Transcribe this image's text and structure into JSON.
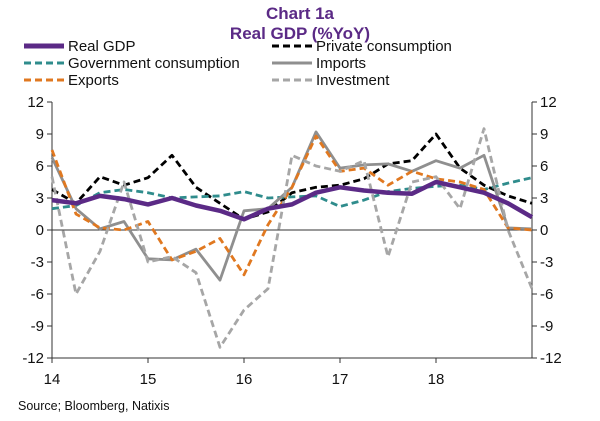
{
  "chart_data": {
    "type": "line",
    "title": "Chart 1a",
    "subtitle": "Real GDP (%YoY)",
    "source": "Source; Bloomberg, Natixis",
    "x": [
      2014.0,
      2014.25,
      2014.5,
      2014.75,
      2015.0,
      2015.25,
      2015.5,
      2015.75,
      2016.0,
      2016.25,
      2016.5,
      2016.75,
      2017.0,
      2017.25,
      2017.5,
      2017.75,
      2018.0,
      2018.25,
      2018.5,
      2018.75,
      2019.0
    ],
    "x_tick_labels": [
      "14",
      "15",
      "16",
      "17",
      "18"
    ],
    "x_tick_values": [
      2014,
      2015,
      2016,
      2017,
      2018
    ],
    "xlim": [
      2014.0,
      2019.0
    ],
    "ylim": [
      -12,
      12
    ],
    "y_ticks": [
      12,
      9,
      6,
      3,
      0,
      -3,
      -6,
      -9,
      -12
    ],
    "y_tick_labels": [
      "12",
      "9",
      "6",
      "3",
      "0",
      "-3",
      "-6",
      "-9",
      "-12"
    ],
    "grid": false,
    "legend_position": "top",
    "series": [
      {
        "name": "Real GDP",
        "color": "#5b2a86",
        "style": "solid",
        "width": 4.5,
        "values": [
          2.8,
          2.5,
          3.2,
          2.9,
          2.4,
          3.0,
          2.3,
          1.8,
          1.0,
          2.0,
          2.4,
          3.5,
          4.0,
          3.7,
          3.5,
          3.4,
          4.5,
          4.0,
          3.5,
          2.5,
          1.2
        ]
      },
      {
        "name": "Private consumption",
        "color": "#000000",
        "style": "dash",
        "width": 2.8,
        "values": [
          3.8,
          2.5,
          5.0,
          4.2,
          4.9,
          7.0,
          4.0,
          2.5,
          1.0,
          1.7,
          3.5,
          4.0,
          4.2,
          4.8,
          6.2,
          6.5,
          9.0,
          5.8,
          4.2,
          3.2,
          2.5
        ]
      },
      {
        "name": "Government consumption",
        "color": "#2f8c8c",
        "style": "dash",
        "width": 2.8,
        "values": [
          2.0,
          2.3,
          3.5,
          3.8,
          3.5,
          3.0,
          3.1,
          3.2,
          3.6,
          3.0,
          3.1,
          3.2,
          2.2,
          2.8,
          3.6,
          3.9,
          4.1,
          4.2,
          3.8,
          4.4,
          4.9
        ]
      },
      {
        "name": "Imports",
        "color": "#8f8f8f",
        "style": "solid",
        "width": 2.8,
        "values": [
          6.8,
          2.0,
          0.1,
          0.8,
          -2.7,
          -2.8,
          -1.8,
          -4.7,
          1.8,
          2.0,
          4.0,
          9.2,
          5.8,
          6.1,
          6.2,
          5.5,
          6.5,
          5.8,
          7.0,
          0.2,
          0.1
        ]
      },
      {
        "name": "Exports",
        "color": "#e07820",
        "style": "dash",
        "width": 2.8,
        "values": [
          7.5,
          1.5,
          0.2,
          0.0,
          0.8,
          -2.8,
          -2.0,
          -0.8,
          -4.2,
          0.5,
          4.0,
          8.8,
          5.5,
          5.8,
          4.2,
          5.5,
          4.8,
          4.5,
          3.8,
          0.2,
          0.0
        ]
      },
      {
        "name": "Investment",
        "color": "#a6a6a6",
        "style": "dash",
        "width": 2.8,
        "values": [
          5.0,
          -6.0,
          -2.0,
          4.5,
          -3.0,
          -2.5,
          -4.0,
          -11.0,
          -7.5,
          -5.5,
          7.0,
          6.0,
          5.5,
          6.5,
          -2.5,
          4.5,
          5.0,
          2.0,
          9.5,
          0.0,
          -5.5
        ]
      }
    ]
  }
}
